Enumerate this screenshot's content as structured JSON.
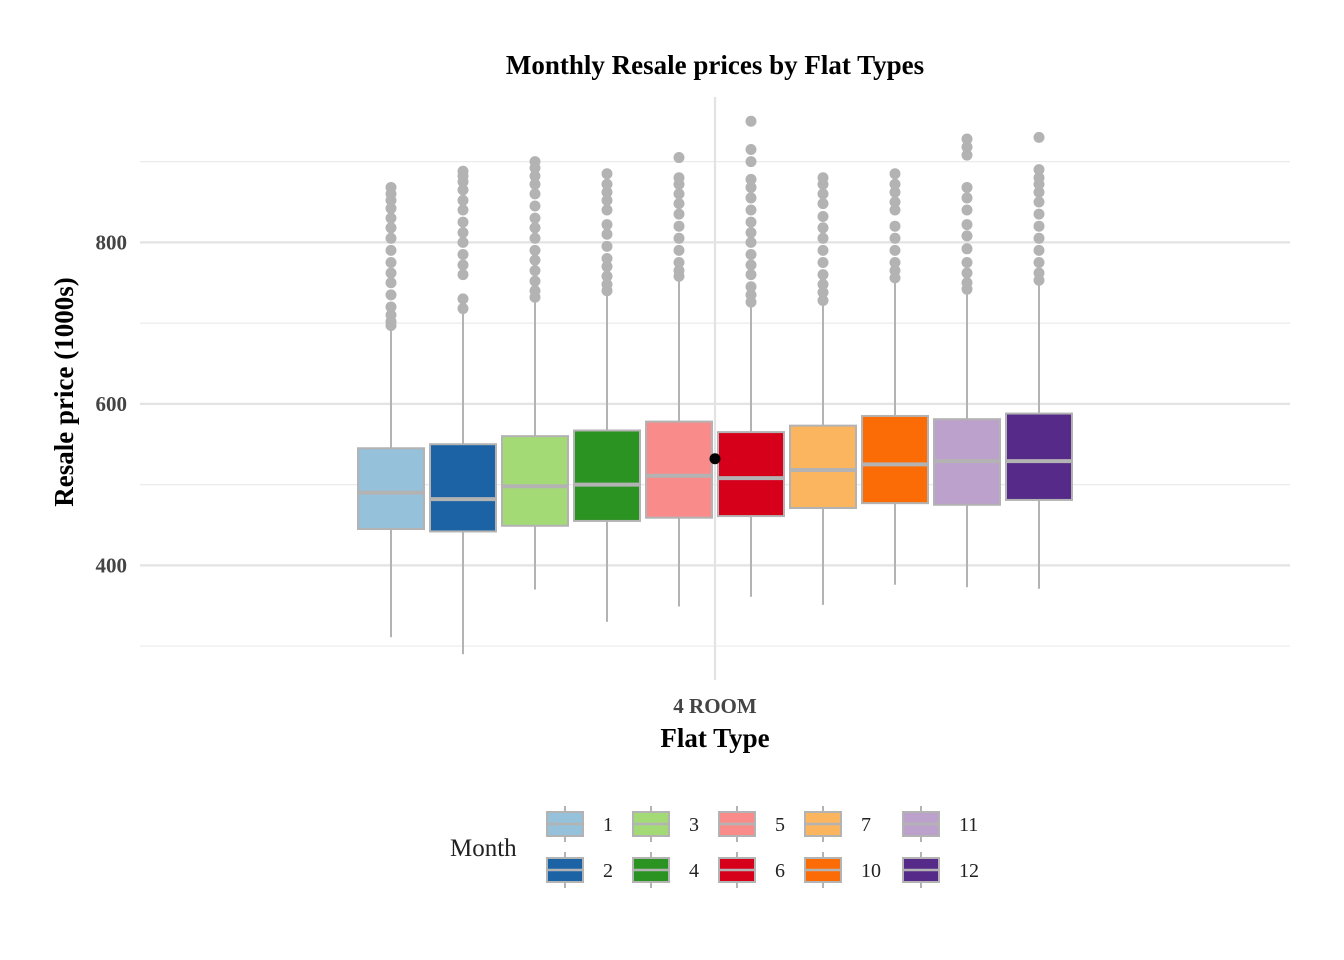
{
  "chart_data": {
    "type": "box",
    "title": "Monthly Resale prices by Flat Types",
    "xlabel": "Flat Type",
    "ylabel": "Resale price (1000s)",
    "categories": [
      "4 ROOM"
    ],
    "ylim": [
      258,
      980
    ],
    "yticks": [
      400,
      600,
      800
    ],
    "minor_gridlines": [
      300,
      500,
      700,
      900
    ],
    "grid": true,
    "mean_point": 532,
    "legend": {
      "title": "Month",
      "placement": "bottom"
    },
    "series": [
      {
        "name": "1",
        "color": "#95C1DB",
        "low": 311,
        "q1": 445,
        "median": 490,
        "q3": 545,
        "high": 692,
        "outliers": [
          697,
          702,
          710,
          720,
          735,
          750,
          762,
          775,
          790,
          805,
          818,
          830,
          842,
          852,
          860,
          868
        ]
      },
      {
        "name": "2",
        "color": "#1B63A5",
        "low": 290,
        "q1": 442,
        "median": 482,
        "q3": 550,
        "high": 715,
        "outliers": [
          718,
          730,
          760,
          772,
          785,
          800,
          812,
          825,
          840,
          852,
          865,
          875,
          882,
          888
        ]
      },
      {
        "name": "3",
        "color": "#A4DA76",
        "low": 370,
        "q1": 449,
        "median": 498,
        "q3": 560,
        "high": 728,
        "outliers": [
          732,
          740,
          752,
          765,
          778,
          790,
          805,
          818,
          830,
          845,
          860,
          872,
          882,
          892,
          900
        ]
      },
      {
        "name": "4",
        "color": "#2B9322",
        "low": 330,
        "q1": 455,
        "median": 500,
        "q3": 567,
        "high": 735,
        "outliers": [
          740,
          748,
          758,
          770,
          780,
          795,
          810,
          822,
          840,
          852,
          862,
          872,
          885
        ]
      },
      {
        "name": "5",
        "color": "#F98C8B",
        "low": 349,
        "q1": 459,
        "median": 511,
        "q3": 578,
        "high": 755,
        "outliers": [
          758,
          765,
          775,
          790,
          805,
          820,
          835,
          848,
          860,
          872,
          880,
          905
        ]
      },
      {
        "name": "6",
        "color": "#D7001B",
        "low": 361,
        "q1": 461,
        "median": 508,
        "q3": 565,
        "high": 722,
        "outliers": [
          726,
          735,
          745,
          760,
          772,
          785,
          800,
          812,
          825,
          840,
          855,
          868,
          878,
          900,
          915,
          950
        ]
      },
      {
        "name": "7",
        "color": "#FBB55E",
        "low": 351,
        "q1": 471,
        "median": 518,
        "q3": 573,
        "high": 725,
        "outliers": [
          728,
          738,
          748,
          760,
          775,
          790,
          805,
          818,
          832,
          848,
          860,
          872,
          880
        ]
      },
      {
        "name": "10",
        "color": "#FB6C07",
        "low": 376,
        "q1": 477,
        "median": 525,
        "q3": 585,
        "high": 752,
        "outliers": [
          756,
          765,
          775,
          790,
          805,
          820,
          840,
          850,
          862,
          872,
          885
        ]
      },
      {
        "name": "11",
        "color": "#BDA1CD",
        "low": 373,
        "q1": 475,
        "median": 529,
        "q3": 581,
        "high": 738,
        "outliers": [
          742,
          750,
          762,
          775,
          792,
          808,
          822,
          840,
          855,
          868,
          908,
          918,
          928
        ]
      },
      {
        "name": "12",
        "color": "#552A88",
        "low": 371,
        "q1": 481,
        "median": 529,
        "q3": 588,
        "high": 750,
        "outliers": [
          753,
          762,
          775,
          790,
          805,
          820,
          835,
          850,
          862,
          872,
          880,
          890,
          930
        ]
      }
    ]
  }
}
